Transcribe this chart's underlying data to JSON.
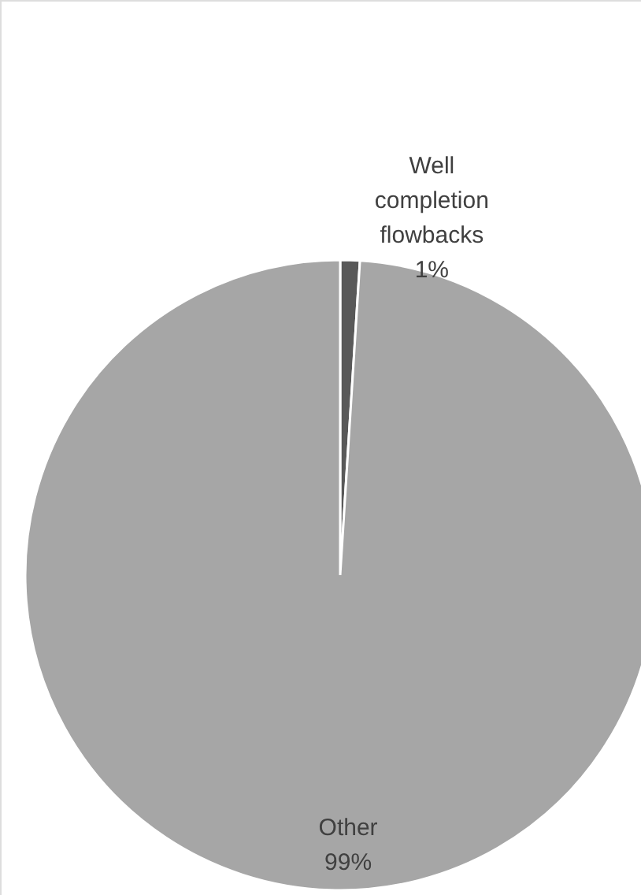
{
  "chart_data": {
    "type": "pie",
    "categories": [
      "Well completion flowbacks",
      "Other"
    ],
    "values": [
      1,
      99
    ],
    "colors": [
      "#595959",
      "#a6a6a6"
    ],
    "value_labels": [
      "1%",
      "99%"
    ]
  }
}
